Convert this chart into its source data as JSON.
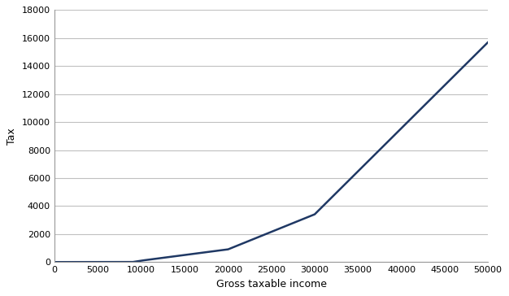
{
  "title": "",
  "xlabel": "Gross taxable income",
  "ylabel": "Tax",
  "line_color": "#1F3864",
  "line_width": 1.8,
  "background_color": "#ffffff",
  "xlim": [
    0,
    50000
  ],
  "ylim": [
    0,
    18000
  ],
  "xticks": [
    0,
    5000,
    10000,
    15000,
    20000,
    25000,
    30000,
    35000,
    40000,
    45000,
    50000
  ],
  "yticks": [
    0,
    2000,
    4000,
    6000,
    8000,
    10000,
    12000,
    14000,
    16000,
    18000
  ],
  "grid_color": "#c0c0c0",
  "brackets": [
    {
      "from": 0,
      "to": 9000,
      "rate": 0.0
    },
    {
      "from": 9000,
      "to": 10000,
      "rate": 0.1
    },
    {
      "from": 10000,
      "to": 20000,
      "rate": 0.08
    },
    {
      "from": 20000,
      "to": 30000,
      "rate": 0.25
    },
    {
      "from": 30000,
      "to": 50000,
      "rate": 0.615
    }
  ]
}
